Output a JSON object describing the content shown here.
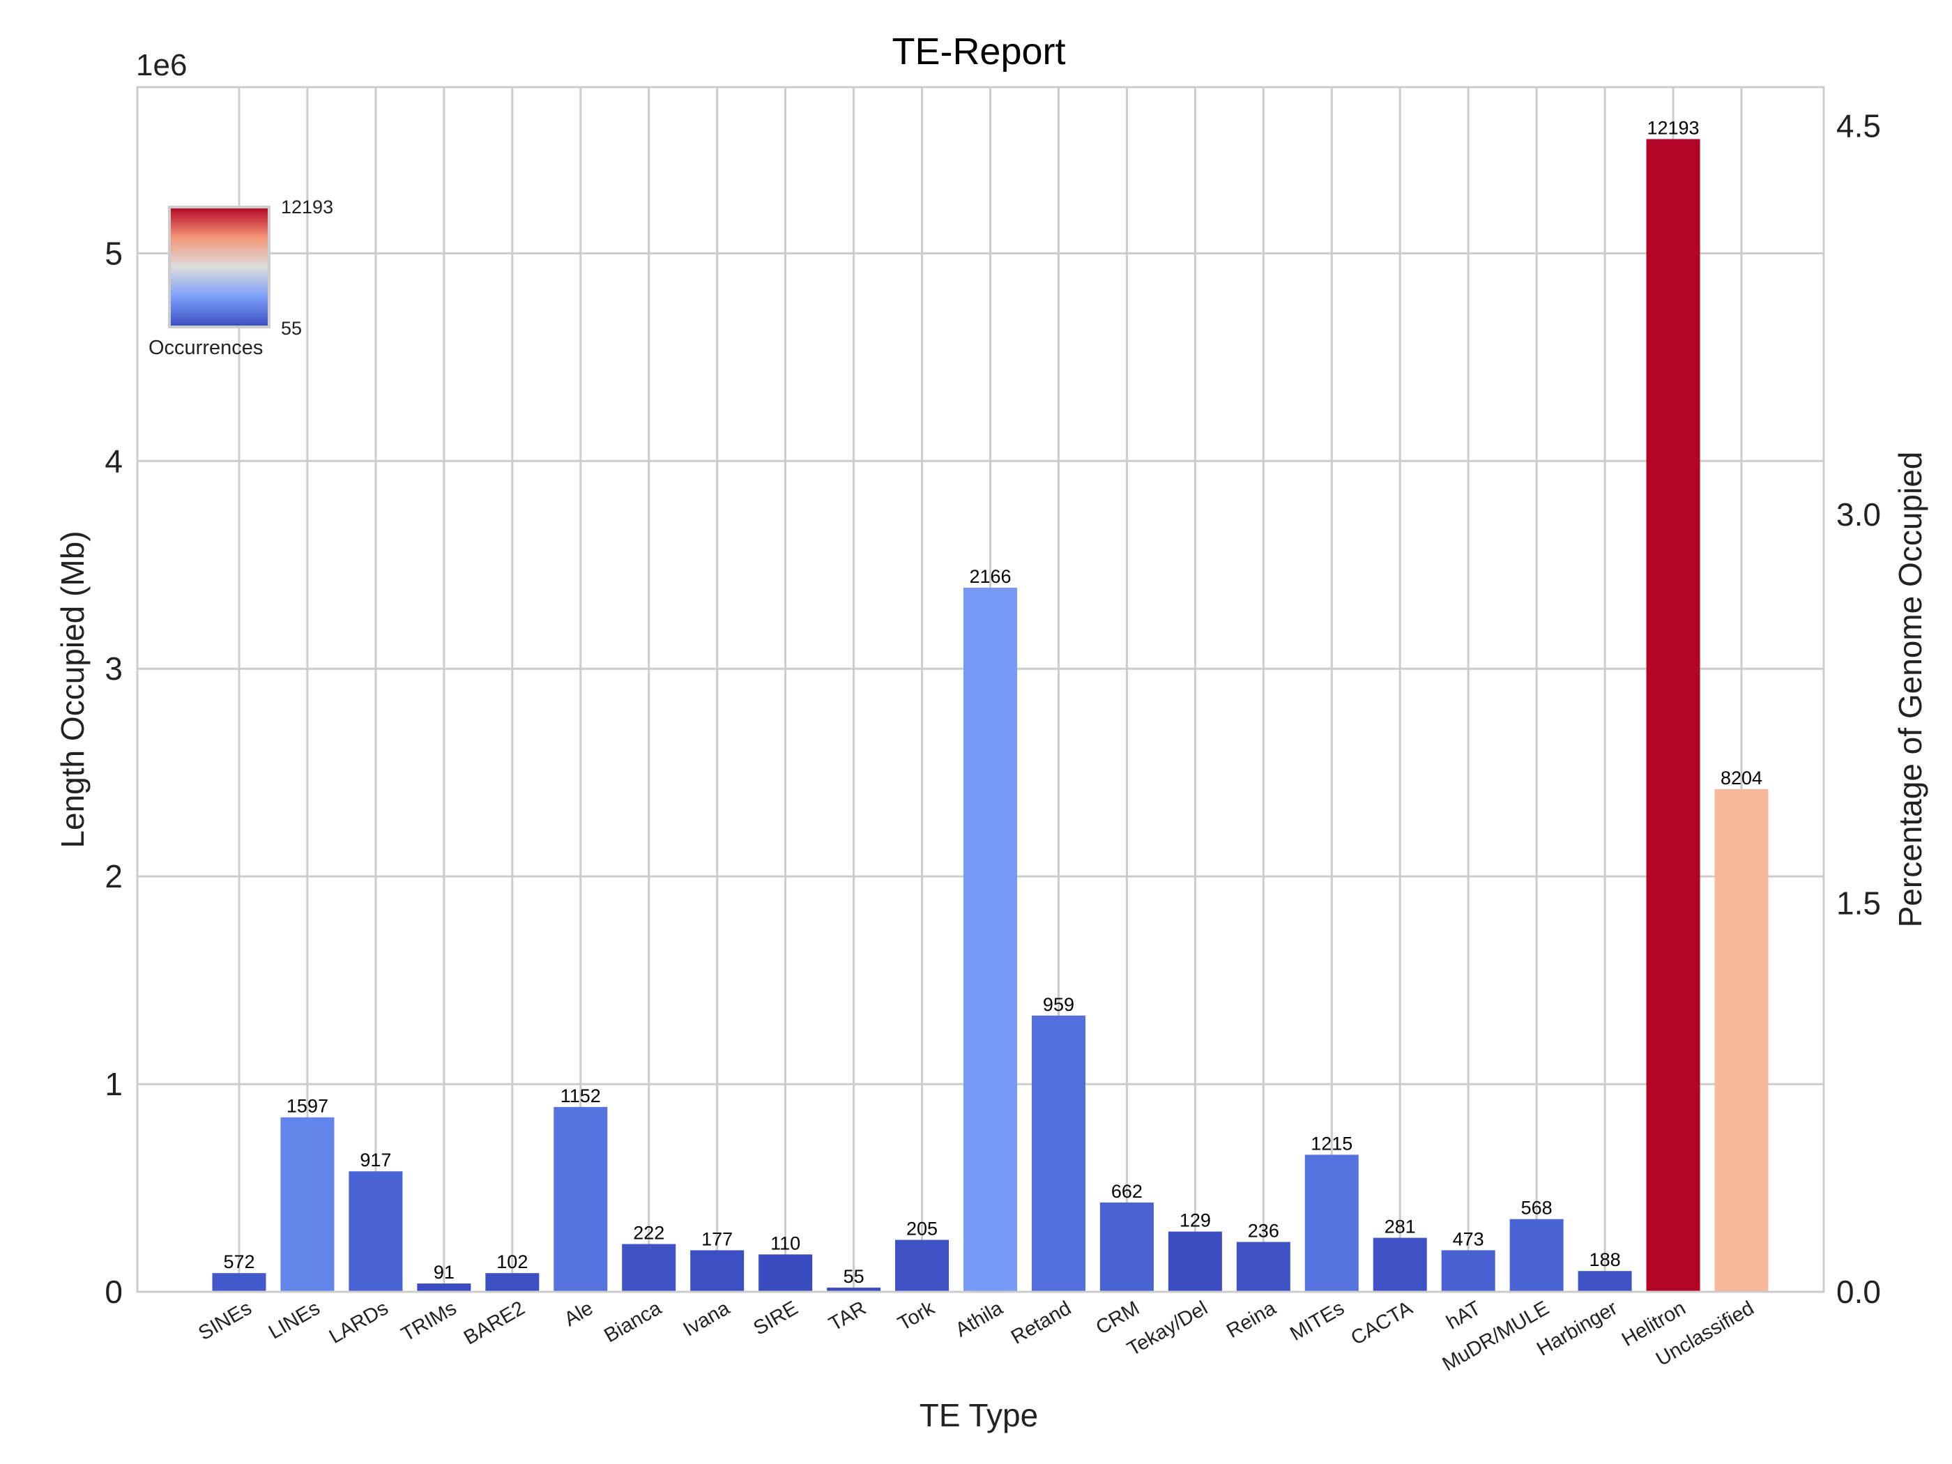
{
  "chart_data": {
    "type": "bar",
    "title": "TE-Report",
    "xlabel": "TE Type",
    "ylabel": "Length Occupied (Mb)",
    "y_offset_label": "1e6",
    "ylim": [
      0,
      5.8
    ],
    "yticks": [
      0,
      1,
      2,
      3,
      4,
      5
    ],
    "y2label": "Percentage of Genome Occupied",
    "y2lim": [
      0,
      4.65
    ],
    "y2ticks": [
      "0.0",
      "1.5",
      "3.0",
      "4.5"
    ],
    "grid": true,
    "colorbar": {
      "label": "Occurrences",
      "max_label": "12193",
      "min_label": "55",
      "min": 55,
      "max": 12193,
      "placement": "top-left"
    },
    "categories": [
      "SINEs",
      "LINEs",
      "LARDs",
      "TRIMs",
      "BARE2",
      "Ale",
      "Bianca",
      "Ivana",
      "SIRE",
      "TAR",
      "Tork",
      "Athila",
      "Retand",
      "CRM",
      "Tekay/Del",
      "Reina",
      "MITEs",
      "CACTA",
      "hAT",
      "MuDR/MULE",
      "Harbinger",
      "Helitron",
      "Unclassified"
    ],
    "values": [
      0.09,
      0.84,
      0.58,
      0.04,
      0.09,
      0.89,
      0.23,
      0.2,
      0.18,
      0.02,
      0.25,
      3.39,
      1.33,
      0.43,
      0.29,
      0.24,
      0.66,
      0.26,
      0.2,
      0.35,
      0.1,
      5.55,
      2.42
    ],
    "occurrences": [
      572,
      1597,
      917,
      91,
      102,
      1152,
      222,
      177,
      110,
      55,
      205,
      2166,
      959,
      662,
      129,
      236,
      1215,
      281,
      473,
      568,
      188,
      12193,
      8204
    ],
    "colors": [
      "#4358cb",
      "#6384eb",
      "#4b64d5",
      "#3b4cc0",
      "#3d50c3",
      "#5572df",
      "#3f53c6",
      "#3d50c3",
      "#3b4cc0",
      "#3b4cc0",
      "#3e51c5",
      "#779af7",
      "#536edd",
      "#4a63d3",
      "#3c4ec2",
      "#3f53c6",
      "#5572df",
      "#3f53c6",
      "#4961d2",
      "#4b64d5",
      "#3e51c5",
      "#b40426",
      "#f7b89c"
    ]
  }
}
